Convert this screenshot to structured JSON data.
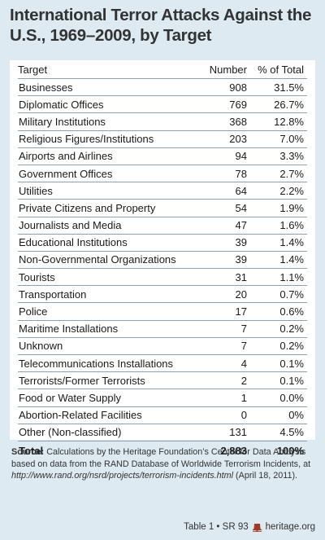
{
  "title": "International Terror Attacks Against the U.S., 1969–2009, by Target",
  "table": {
    "headers": [
      "Target",
      "Number",
      "% of Total"
    ],
    "total": {
      "label": "Total",
      "number": "2,883",
      "percent": "100%"
    }
  },
  "chart_data": {
    "type": "table",
    "title": "International Terror Attacks Against the U.S., 1969–2009, by Target",
    "columns": [
      "Target",
      "Number",
      "% of Total"
    ],
    "rows": [
      {
        "target": "Businesses",
        "number": "908",
        "percent": "31.5%"
      },
      {
        "target": "Diplomatic Offices",
        "number": "769",
        "percent": "26.7%"
      },
      {
        "target": "Military Institutions",
        "number": "368",
        "percent": "12.8%"
      },
      {
        "target": "Religious Figures/Institutions",
        "number": "203",
        "percent": "7.0%"
      },
      {
        "target": "Airports and Airlines",
        "number": "94",
        "percent": "3.3%"
      },
      {
        "target": "Government Offices",
        "number": "78",
        "percent": "2.7%"
      },
      {
        "target": "Utilities",
        "number": "64",
        "percent": "2.2%"
      },
      {
        "target": "Private Citizens and Property",
        "number": "54",
        "percent": "1.9%"
      },
      {
        "target": "Journalists and Media",
        "number": "47",
        "percent": "1.6%"
      },
      {
        "target": "Educational Institutions",
        "number": "39",
        "percent": "1.4%"
      },
      {
        "target": "Non-Governmental Organizations",
        "number": "39",
        "percent": "1.4%"
      },
      {
        "target": "Tourists",
        "number": "31",
        "percent": "1.1%"
      },
      {
        "target": "Transportation",
        "number": "20",
        "percent": "0.7%"
      },
      {
        "target": "Police",
        "number": "17",
        "percent": "0.6%"
      },
      {
        "target": "Maritime Installations",
        "number": "7",
        "percent": "0.2%"
      },
      {
        "target": "Unknown",
        "number": "7",
        "percent": "0.2%"
      },
      {
        "target": "Telecommunications Installations",
        "number": "4",
        "percent": "0.1%"
      },
      {
        "target": "Terrorists/Former Terrorists",
        "number": "2",
        "percent": "0.1%"
      },
      {
        "target": "Food or Water Supply",
        "number": "1",
        "percent": "0.0%"
      },
      {
        "target": "Abortion-Related Facilities",
        "number": "0",
        "percent": "0%"
      },
      {
        "target": "Other (Non-classified)",
        "number": "131",
        "percent": "4.5%"
      }
    ]
  },
  "source": {
    "label": "Source:",
    "text_before": " Calculations by the Heritage Foundation’s Center for Data Analysis based on data from the RAND Database of Worldwide Terrorism Incidents, at ",
    "url": "http://www.rand.org/nsrd/projects/terrorism-incidents.html",
    "text_after": " (April 18, 2011)."
  },
  "footer": {
    "citation": "Table 1 • SR 93",
    "site": "heritage.org"
  },
  "colors": {
    "background": "#ddeaf1",
    "panel": "#ffffff",
    "rule": "#8aa3b3",
    "bell": "#a33a24"
  }
}
